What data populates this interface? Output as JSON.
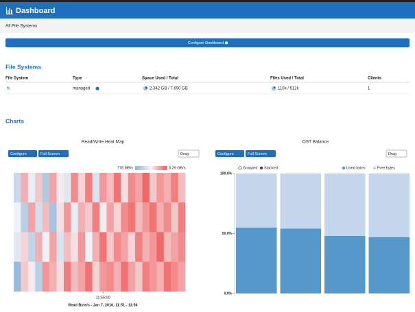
{
  "header": {
    "title": "Dashboard"
  },
  "breadcrumb": "All File Systems",
  "configure_button": "Configure Dashboard",
  "file_systems": {
    "title": "File Systems",
    "columns": [
      "File System",
      "Type",
      "Space Used / Total",
      "Files Used / Total",
      "Clients"
    ],
    "rows": [
      [
        "fs",
        "managed",
        "2.342 GB / 7.690 GB",
        "110k / 512k",
        1
      ]
    ]
  },
  "charts_title": "Charts",
  "chart_data": [
    {
      "type": "heatmap",
      "title": "Read/Write Heat Map",
      "controls": [
        "Configure",
        "Full Screen",
        "Drag"
      ],
      "x": [
        null,
        null,
        null,
        null,
        null,
        null,
        null,
        null,
        null,
        null,
        null,
        null,
        "11:55:00",
        null,
        null,
        null,
        null,
        null,
        null,
        null,
        null,
        null,
        null,
        null
      ],
      "values": [
        [
          1500,
          2600,
          1900,
          2400,
          1200,
          2700,
          2100,
          1800,
          2900,
          2300,
          3000,
          1700,
          2800,
          2500,
          3100,
          2200,
          2900,
          2700,
          3200,
          2400,
          2800,
          2600,
          3000,
          2500
        ],
        [
          2000,
          1300,
          2700,
          1600,
          2500,
          1100,
          2200,
          2800,
          1900,
          2600,
          2400,
          3000,
          2100,
          2700,
          2300,
          2900,
          3100,
          2500,
          2800,
          3100,
          2600,
          2900,
          2400,
          3000
        ],
        [
          1800,
          2300,
          1400,
          2600,
          2000,
          2700,
          1700,
          2500,
          2200,
          2800,
          2000,
          2600,
          3100,
          2400,
          2900,
          2700,
          2300,
          3000,
          2600,
          2800,
          3200,
          2500,
          2700,
          2900
        ],
        [
          900,
          2400,
          2100,
          1300,
          2800,
          2600,
          2200,
          3000,
          2500,
          2700,
          3100,
          2300,
          2800,
          2900,
          2600,
          3100,
          2700,
          2400,
          3000,
          2800,
          2600,
          3100,
          2900,
          2700
        ]
      ],
      "color_scale": [
        {
          "value": 778,
          "label": "778 MB/s"
        },
        {
          "value": 3290,
          "label": "3.29 GB/s"
        }
      ],
      "colors": [
        "#8fb4d9",
        "#f4f4f8",
        "#f25c5c"
      ],
      "xlabel": "Read Byte/s - Jan 7, 2016, 11:51 - 11:56"
    },
    {
      "type": "bar",
      "stacked": true,
      "title": "OST Balance",
      "controls": [
        "Configure",
        "Full Screen",
        "Drag"
      ],
      "modes": [
        "Grouped",
        "Stacked"
      ],
      "categories": [
        null,
        null,
        null,
        null
      ],
      "series": [
        {
          "name": "Used bytes",
          "color": "#5598c9",
          "values": [
            55,
            54,
            48,
            47
          ]
        },
        {
          "name": "Free bytes",
          "color": "#c3d6ec",
          "values": [
            45,
            46,
            52,
            53
          ]
        }
      ],
      "ylim": [
        0,
        100
      ],
      "yticks": [
        {
          "value": 0,
          "label": "0.0%"
        },
        {
          "value": 50,
          "label": "50.0%"
        },
        {
          "value": 100,
          "label": "100.0%"
        }
      ]
    }
  ]
}
